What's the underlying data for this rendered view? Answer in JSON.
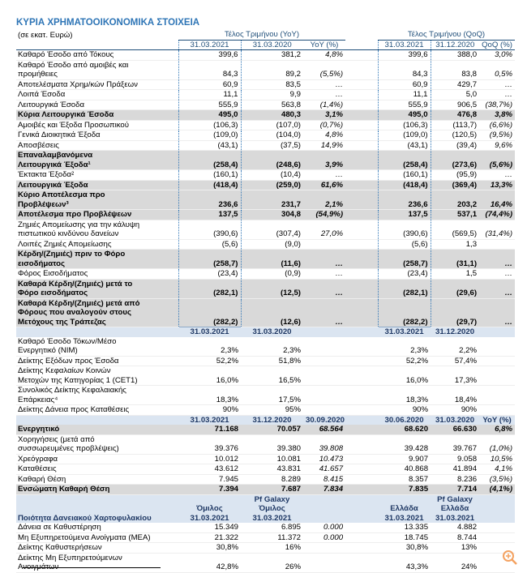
{
  "title": "ΚΥΡΙΑ ΧΡΗΜΑΤΟΟΙΚΟΝΟΜΙΚΑ ΣΤΟΙΧΕΙΑ",
  "sections": [
    {
      "groups": [
        "(σε εκατ. Ευρώ)",
        "Τέλος Τριμήνου (YoY)",
        "Τέλος Τριμήνου (QoQ)"
      ],
      "header": [
        null,
        "31.03.2021",
        "31.03.2020",
        "YoY (%)",
        "31.03.2021",
        "31.12.2020",
        "QoQ (%)"
      ],
      "rows": [
        {
          "cells": [
            "Καθαρό Έσοδο από Τόκους",
            "399,6",
            "381,2",
            "4,8%",
            "399,6",
            "388,0",
            "3,0%"
          ]
        },
        {
          "cells": [
            "Καθαρό Έσοδο από αμοιβές και\nπρομήθειες",
            "84,3",
            "89,2",
            "(5,5%)",
            "84,3",
            "83,8",
            "0,5%"
          ]
        },
        {
          "cells": [
            "Αποτελέσματα Χρημ/κών Πράξεων",
            "60,9",
            "83,5",
            "…",
            "60,9",
            "429,7",
            "…"
          ]
        },
        {
          "cells": [
            "Λοιπά Έσοδα",
            "11,1",
            "9,9",
            "…",
            "11,1",
            "5,0",
            "…"
          ]
        },
        {
          "cells": [
            "Λειτουργικά Έσοδα",
            "555,9",
            "563,8",
            "(1,4%)",
            "555,9",
            "906,5",
            "(38,7%)"
          ]
        },
        {
          "cells": [
            "Κύρια Λειτουργικά Έσοδα",
            "495,0",
            "480,3",
            "3,1%",
            "495,0",
            "476,8",
            "3,8%"
          ],
          "bold": true
        },
        {
          "cells": [
            "Αμοιβές και Έξοδα Προσωπικού",
            "(106,3)",
            "(107,0)",
            "(0,7%)",
            "(106,3)",
            "(113,7)",
            "(6,6%)"
          ]
        },
        {
          "cells": [
            "Γενικά Διοικητικά Έξοδα",
            "(109,0)",
            "(104,0)",
            "4,8%",
            "(109,0)",
            "(120,5)",
            "(9,5%)"
          ]
        },
        {
          "cells": [
            "Αποσβέσεις",
            "(43,1)",
            "(37,5)",
            "14,9%",
            "(43,1)",
            "(39,4)",
            "9,6%"
          ]
        },
        {
          "cells": [
            "Επαναλαμβανόμενα\nΛειτουργικά Έξοδα¹",
            "(258,4)",
            "(248,6)",
            "3,9%",
            "(258,4)",
            "(273,6)",
            "(5,6%)"
          ],
          "bold": true
        },
        {
          "cells": [
            "Έκτακτα Έξοδα²",
            "(160,1)",
            "(10,4)",
            "…",
            "(160,1)",
            "(95,9)",
            "…"
          ]
        },
        {
          "cells": [
            "Λειτουργικά Έξοδα",
            "(418,4)",
            "(259,0)",
            "61,6%",
            "(418,4)",
            "(369,4)",
            "13,3%"
          ],
          "bold": true
        },
        {
          "cells": [
            "Κύριο Αποτέλεσμα προ\nΠροβλέψεων³",
            "236,6",
            "231,7",
            "2,1%",
            "236,6",
            "203,2",
            "16,4%"
          ],
          "bold": true
        },
        {
          "cells": [
            "Αποτέλεσμα προ Προβλέψεων",
            "137,5",
            "304,8",
            "(54,9%)",
            "137,5",
            "537,1",
            "(74,4%)"
          ],
          "bold": true
        },
        {
          "cells": [
            "Ζημιές Απομείωσης για την κάλυψη\nπιστωτικού κινδύνου δανείων",
            "(390,6)",
            "(307,4)",
            "27,0%",
            "(390,6)",
            "(569,5)",
            "(31,4%)"
          ]
        },
        {
          "cells": [
            "Λοιπές Ζημιές Απομείωσης",
            "(5,6)",
            "(9,0)",
            null,
            "(5,6)",
            "1,3",
            null
          ]
        },
        {
          "cells": [
            "Κέρδη/(Ζημιές) πριν  το Φόρο\nεισοδήματος",
            "(258,7)",
            "(11,6)",
            "…",
            "(258,7)",
            "(31,1)",
            "…"
          ],
          "bold": true
        },
        {
          "cells": [
            "Φόρος Εισοδήματος",
            "(23,4)",
            "(0,9)",
            "…",
            "(23,4)",
            "1,5",
            "…"
          ]
        },
        {
          "cells": [
            "Καθαρά Κέρδη/(Ζημιές) μετά το\nΦόρο εισοδήματος",
            "(282,1)",
            "(12,5)",
            "…",
            "(282,1)",
            "(29,6)",
            "…"
          ],
          "bold": true
        },
        {
          "cells": [
            "Καθαρά Κέρδη/(Ζημιές) μετά από\nΦόρους που αναλογούν στους\nΜετόχους της Τράπεζας",
            "(282,2)",
            "(12,6)",
            "…",
            "(282,2)",
            "(29,7)",
            "…"
          ],
          "bold": true
        }
      ]
    },
    {
      "header": [
        null,
        "31.03.2021",
        "31.03.2020",
        null,
        "31.03.2021",
        "31.12.2020",
        null
      ],
      "rows": [
        {
          "cells": [
            "Καθαρό Έσοδο Τόκων/Μέσο\nΕνεργητικό (NIM)",
            "2,3%",
            "2,3%",
            null,
            "2,3%",
            "2,2%",
            null
          ]
        },
        {
          "cells": [
            "Δείκτης Εξόδων προς Έσοδα",
            "52,2%",
            "51,8%",
            null,
            "52,2%",
            "57,4%",
            null
          ]
        },
        {
          "cells": [
            "Δείκτης Κεφαλαίων Κοινών\nΜετοχών της Κατηγορίας 1 (CET1)",
            "16,0%",
            "16,5%",
            null,
            "16,0%",
            "17,3%",
            null
          ]
        },
        {
          "cells": [
            "Συνολικός Δείκτης Κεφαλαιακής\nΕπάρκειας⁴",
            "18,3%",
            "17,5%",
            null,
            "18,3%",
            "18,4%",
            null
          ]
        },
        {
          "cells": [
            "Δείκτης Δάνεια προς Καταθέσεις",
            "90%",
            "95%",
            null,
            "90%",
            "90%",
            null
          ]
        }
      ]
    },
    {
      "header": [
        null,
        "31.03.2021",
        "31.12.2020",
        "30.09.2020",
        "30.06.2020",
        "31.03.2020",
        "YoY (%)"
      ],
      "rows": [
        {
          "cells": [
            "Ενεργητικό",
            "71.168",
            "70.057",
            "68.564",
            "68.620",
            "66.630",
            "6,8%"
          ],
          "bold": true
        },
        {
          "cells": [
            "Χορηγήσεις (μετά από\nσυσσωρευμένες προβλέψεις)",
            "39.376",
            "39.380",
            "39.808",
            "39.428",
            "39.767",
            "(1,0%)"
          ]
        },
        {
          "cells": [
            "Χρεόγραφα",
            "10.012",
            "10.081",
            "10.473",
            "9.907",
            "9.058",
            "10,5%"
          ]
        },
        {
          "cells": [
            "Καταθέσεις",
            "43.612",
            "43.831",
            "41.657",
            "40.868",
            "41.894",
            "4,1%"
          ]
        },
        {
          "cells": [
            "Καθαρή Θέση",
            "7.945",
            "8.289",
            "8.415",
            "8.357",
            "8.236",
            "(3,5%)"
          ]
        },
        {
          "cells": [
            "Ενσώματη Καθαρή Θέση",
            "7.394",
            "7.687",
            "7.834",
            "7.835",
            "7.714",
            "(4,1%)"
          ],
          "bold": true
        }
      ]
    },
    {
      "header": [
        "Ποιότητα Δανειακού Χαρτοφυλακίου",
        "Όμιλος\n31.03.2021",
        "Pf Galaxy\nΌμιλος\n31.03.2021",
        null,
        "Ελλάδα\n31.03.2021",
        "Pf Galaxy\nΕλλάδα\n31.03.2021",
        null
      ],
      "rows": [
        {
          "cells": [
            "Δάνεια σε Καθυστέρηση",
            "15.349",
            "6.895",
            "0.000",
            "13.335",
            "4.882",
            null
          ]
        },
        {
          "cells": [
            "Μη Εξυπηρετούμενα Ανοίγματα (ΜΕΑ)",
            "21.322",
            "11.372",
            "0.000",
            "18.745",
            "8.744",
            null
          ]
        },
        {
          "cells": [
            "Δείκτης Καθυστερήσεων",
            "30,8%",
            "16%",
            null,
            "30,8%",
            "13%",
            null
          ]
        },
        {
          "cells": [
            "Δείκτης Μη Εξυπηρετούμενων\nΑνοιγμάτων",
            "42,8%",
            "26%",
            null,
            "43,3%",
            "24%",
            null
          ]
        }
      ]
    }
  ]
}
